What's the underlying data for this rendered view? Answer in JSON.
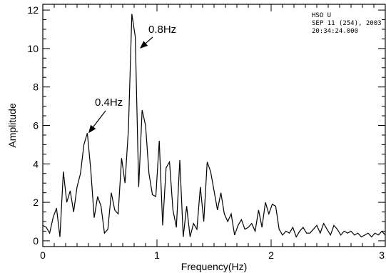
{
  "chart_data": {
    "type": "line",
    "title": "",
    "xlabel": "Frequency(Hz)",
    "ylabel": "Amplitude",
    "xlim": [
      0,
      3
    ],
    "ylim": [
      -0.3,
      12.3
    ],
    "x_ticks": [
      0,
      1,
      2,
      3
    ],
    "x_tick_labels": [
      "0",
      "1",
      "2",
      "3"
    ],
    "y_ticks": [
      0,
      2,
      4,
      6,
      8,
      10,
      12
    ],
    "y_tick_labels": [
      "0",
      "2",
      "4",
      "6",
      "8",
      "10",
      "12"
    ],
    "grid": false,
    "series": [
      {
        "x": [
          0.0,
          0.03,
          0.06,
          0.09,
          0.12,
          0.15,
          0.18,
          0.21,
          0.24,
          0.27,
          0.3,
          0.33,
          0.36,
          0.39,
          0.42,
          0.45,
          0.48,
          0.51,
          0.54,
          0.57,
          0.6,
          0.63,
          0.66,
          0.69,
          0.72,
          0.75,
          0.78,
          0.81,
          0.84,
          0.87,
          0.9,
          0.93,
          0.96,
          0.99,
          1.02,
          1.05,
          1.08,
          1.11,
          1.14,
          1.17,
          1.2,
          1.23,
          1.26,
          1.29,
          1.32,
          1.35,
          1.38,
          1.41,
          1.44,
          1.47,
          1.5,
          1.53,
          1.56,
          1.59,
          1.62,
          1.65,
          1.68,
          1.71,
          1.74,
          1.77,
          1.8,
          1.83,
          1.86,
          1.89,
          1.92,
          1.95,
          1.98,
          2.01,
          2.04,
          2.07,
          2.1,
          2.13,
          2.16,
          2.19,
          2.22,
          2.25,
          2.28,
          2.31,
          2.34,
          2.37,
          2.4,
          2.43,
          2.46,
          2.49,
          2.52,
          2.55,
          2.58,
          2.61,
          2.64,
          2.67,
          2.7,
          2.73,
          2.76,
          2.79,
          2.82,
          2.85,
          2.88,
          2.91,
          2.94,
          2.97,
          3.0
        ],
        "y": [
          0.8,
          0.7,
          0.4,
          1.2,
          1.7,
          0.2,
          3.6,
          2.0,
          2.6,
          1.5,
          2.8,
          3.5,
          5.0,
          5.6,
          3.7,
          1.2,
          2.3,
          1.8,
          0.4,
          0.6,
          2.5,
          1.6,
          1.4,
          4.3,
          3.0,
          5.8,
          11.8,
          10.6,
          2.8,
          6.8,
          6.0,
          3.5,
          2.4,
          2.3,
          5.2,
          0.8,
          3.8,
          4.1,
          1.6,
          0.7,
          4.2,
          0.2,
          1.8,
          0.2,
          0.9,
          0.6,
          2.8,
          1.0,
          4.1,
          3.6,
          2.6,
          1.6,
          2.5,
          1.4,
          1.0,
          1.4,
          0.3,
          0.8,
          1.1,
          0.6,
          0.7,
          0.9,
          0.5,
          1.6,
          0.7,
          2.0,
          1.4,
          1.9,
          1.8,
          0.6,
          0.3,
          0.5,
          0.4,
          0.7,
          0.2,
          0.5,
          0.7,
          0.4,
          0.4,
          0.6,
          0.8,
          0.4,
          0.9,
          0.6,
          0.3,
          0.8,
          0.6,
          0.3,
          0.5,
          0.4,
          0.5,
          0.3,
          0.4,
          0.2,
          0.3,
          0.4,
          0.2,
          0.4,
          0.3,
          0.5,
          0.3
        ],
        "color": "#000000"
      }
    ],
    "annotations": [
      {
        "text": "0.8Hz",
        "target_x": 0.85,
        "target_y": 10.0
      },
      {
        "text": "0.4Hz",
        "target_x": 0.4,
        "target_y": 5.6
      }
    ],
    "stamp_lines": [
      "HSO  U",
      "SEP 11 (254), 2003",
      "20:34:24.000"
    ]
  }
}
